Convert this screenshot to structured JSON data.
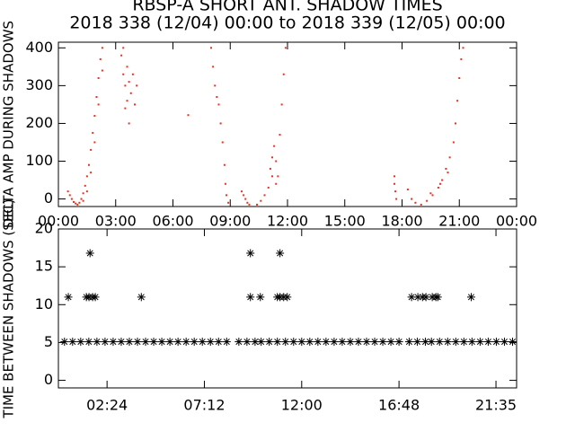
{
  "title": "RBSP-A SHORT ANT. SHADOW TIMES",
  "subtitle": "2018 338 (12/04) 00:00 to 2018 339 (12/05) 00:00",
  "chart_data": [
    {
      "type": "scatter",
      "ylabel": "DELTA AMP DURING SHADOWS",
      "marker": "dot",
      "color": "#e8321e",
      "xlim": [
        0,
        24
      ],
      "ylim": [
        -20,
        415
      ],
      "xticks": [
        {
          "value": 0,
          "label": "00:00"
        },
        {
          "value": 3,
          "label": "03:00"
        },
        {
          "value": 6,
          "label": "06:00"
        },
        {
          "value": 9,
          "label": "09:00"
        },
        {
          "value": 12,
          "label": "12:00"
        },
        {
          "value": 15,
          "label": "15:00"
        },
        {
          "value": 18,
          "label": "18:00"
        },
        {
          "value": 21,
          "label": "21:00"
        },
        {
          "value": 24,
          "label": "00:00"
        }
      ],
      "yticks": [
        0,
        100,
        200,
        300,
        400
      ],
      "x": [
        0.5,
        0.6,
        0.7,
        0.8,
        0.9,
        1.0,
        1.1,
        1.2,
        1.3,
        1.4,
        1.5,
        1.6,
        1.7,
        1.8,
        1.9,
        2.0,
        2.1,
        2.2,
        2.3,
        1.3,
        1.5,
        1.7,
        1.9,
        2.1,
        2.3,
        3.3,
        3.4,
        3.5,
        3.6,
        3.7,
        3.8,
        3.9,
        4.0,
        3.5,
        3.7,
        3.6,
        4.1,
        3.4,
        6.8,
        8.0,
        8.1,
        8.2,
        8.3,
        8.4,
        8.5,
        8.6,
        8.7,
        8.75,
        8.8,
        8.9,
        9.6,
        9.7,
        9.8,
        9.9,
        10.0,
        10.4,
        10.6,
        10.8,
        11.0,
        11.2,
        11.4,
        11.6,
        11.7,
        11.8,
        11.9,
        11.1,
        11.2,
        11.3,
        11.4,
        11.5,
        17.6,
        17.6,
        17.65,
        17.7,
        18.3,
        18.5,
        18.7,
        19.0,
        19.3,
        19.6,
        19.9,
        20.1,
        20.3,
        20.5,
        19.5,
        20.0,
        20.4,
        20.7,
        20.8,
        20.9,
        21.0,
        21.1,
        21.2
      ],
      "values": [
        20,
        10,
        0,
        -8,
        -12,
        -15,
        -10,
        0,
        15,
        35,
        60,
        90,
        130,
        175,
        220,
        270,
        320,
        370,
        400,
        -5,
        20,
        70,
        150,
        250,
        340,
        380,
        330,
        300,
        350,
        310,
        280,
        330,
        250,
        240,
        200,
        260,
        300,
        400,
        222,
        400,
        350,
        300,
        270,
        250,
        200,
        150,
        90,
        40,
        10,
        -10,
        20,
        10,
        0,
        -10,
        -15,
        -15,
        -5,
        10,
        30,
        60,
        100,
        170,
        250,
        330,
        400,
        80,
        110,
        140,
        40,
        60,
        60,
        40,
        20,
        0,
        25,
        0,
        -10,
        -15,
        -5,
        10,
        30,
        50,
        80,
        110,
        15,
        40,
        70,
        150,
        200,
        260,
        320,
        370,
        400
      ]
    },
    {
      "type": "scatter",
      "ylabel": "TIME BETWEEN SHADOWS (SEC)",
      "marker": "asterisk",
      "color": "#000000",
      "xlim": [
        0,
        22.6
      ],
      "ylim": [
        -1,
        20
      ],
      "xticks": [
        {
          "value": 2.4,
          "label": "02:24"
        },
        {
          "value": 7.2,
          "label": "07:12"
        },
        {
          "value": 12,
          "label": "12:00"
        },
        {
          "value": 16.8,
          "label": "16:48"
        },
        {
          "value": 21.583,
          "label": "21:35"
        }
      ],
      "yticks": [
        0,
        5,
        10,
        15,
        20
      ],
      "x": [
        0.3,
        0.7,
        1.1,
        1.5,
        1.9,
        2.3,
        2.7,
        3.1,
        3.5,
        3.9,
        4.3,
        4.7,
        5.1,
        5.5,
        5.9,
        6.3,
        6.7,
        7.1,
        7.5,
        7.9,
        8.3,
        8.9,
        9.3,
        9.7,
        10.0,
        10.4,
        10.8,
        11.2,
        11.6,
        12.0,
        12.4,
        12.8,
        13.2,
        13.6,
        14.0,
        14.4,
        14.8,
        15.2,
        15.6,
        16.0,
        16.4,
        16.8,
        17.3,
        17.7,
        18.1,
        18.4,
        18.8,
        19.2,
        19.6,
        20.0,
        20.4,
        20.8,
        21.2,
        21.6,
        22.0,
        22.4,
        0.49,
        1.38,
        1.51,
        1.69,
        1.82,
        4.09,
        9.47,
        9.96,
        10.8,
        10.93,
        11.11,
        11.29,
        17.42,
        17.73,
        17.96,
        18.13,
        18.44,
        18.62,
        18.71,
        20.36,
        1.56,
        9.47,
        10.93
      ],
      "values": [
        5.1,
        5.1,
        5.1,
        5.1,
        5.1,
        5.1,
        5.1,
        5.1,
        5.1,
        5.1,
        5.1,
        5.1,
        5.1,
        5.1,
        5.1,
        5.1,
        5.1,
        5.1,
        5.1,
        5.1,
        5.1,
        5.1,
        5.1,
        5.1,
        5.1,
        5.1,
        5.1,
        5.1,
        5.1,
        5.1,
        5.1,
        5.1,
        5.1,
        5.1,
        5.1,
        5.1,
        5.1,
        5.1,
        5.1,
        5.1,
        5.1,
        5.1,
        5.1,
        5.1,
        5.1,
        5.1,
        5.1,
        5.1,
        5.1,
        5.1,
        5.1,
        5.1,
        5.1,
        5.1,
        5.1,
        5.1,
        11,
        11,
        11,
        11,
        11,
        11,
        11,
        11,
        11,
        11,
        11,
        11,
        11,
        11,
        11,
        11,
        11,
        11,
        11,
        11,
        16.8,
        16.8,
        16.8
      ]
    }
  ]
}
